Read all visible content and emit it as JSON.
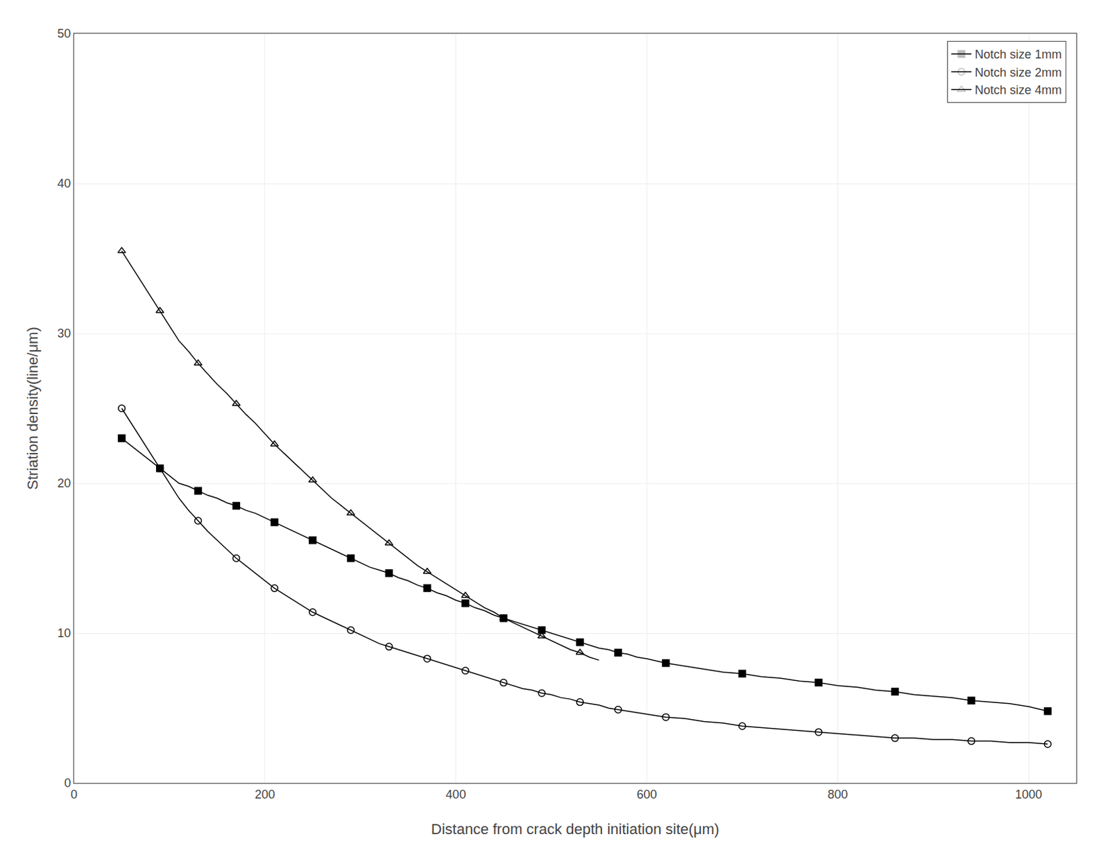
{
  "chart_data": {
    "type": "line",
    "xlabel": "Distance from crack depth initiation site(μm)",
    "ylabel": "Striation density(line/μm)",
    "xlim": [
      0,
      1050
    ],
    "ylim": [
      0,
      50
    ],
    "xticks": [
      0,
      200,
      400,
      600,
      800,
      1000
    ],
    "yticks": [
      0,
      10,
      20,
      30,
      40,
      50
    ],
    "grid": true,
    "legend": "upper right",
    "series": [
      {
        "name": "Notch size 1mm",
        "marker": "square",
        "color": "black",
        "x": [
          50,
          60,
          70,
          80,
          90,
          100,
          110,
          120,
          130,
          140,
          150,
          160,
          170,
          180,
          190,
          200,
          210,
          220,
          230,
          240,
          250,
          260,
          270,
          280,
          290,
          300,
          310,
          320,
          330,
          340,
          350,
          360,
          370,
          380,
          390,
          400,
          410,
          420,
          430,
          440,
          450,
          460,
          470,
          480,
          490,
          500,
          510,
          520,
          530,
          540,
          550,
          560,
          570,
          580,
          590,
          600,
          620,
          640,
          660,
          680,
          700,
          720,
          740,
          760,
          780,
          800,
          820,
          840,
          860,
          880,
          900,
          920,
          940,
          960,
          980,
          1000,
          1020
        ],
        "values": [
          23.0,
          22.5,
          22.0,
          21.5,
          21.0,
          20.5,
          20.0,
          19.8,
          19.5,
          19.2,
          19.0,
          18.7,
          18.5,
          18.2,
          18.0,
          17.7,
          17.4,
          17.1,
          16.8,
          16.5,
          16.2,
          15.9,
          15.6,
          15.3,
          15.0,
          14.7,
          14.4,
          14.2,
          14.0,
          13.7,
          13.5,
          13.2,
          13.0,
          12.7,
          12.5,
          12.2,
          12.0,
          11.7,
          11.5,
          11.2,
          11.0,
          10.8,
          10.6,
          10.4,
          10.2,
          10.0,
          9.8,
          9.6,
          9.4,
          9.2,
          9.0,
          8.9,
          8.7,
          8.6,
          8.4,
          8.3,
          8.0,
          7.8,
          7.6,
          7.4,
          7.3,
          7.1,
          7.0,
          6.8,
          6.7,
          6.5,
          6.4,
          6.2,
          6.1,
          5.9,
          5.8,
          5.7,
          5.5,
          5.4,
          5.3,
          5.1,
          4.8
        ]
      },
      {
        "name": "Notch size 2mm",
        "marker": "circle-open",
        "color": "black",
        "x": [
          50,
          60,
          70,
          80,
          90,
          100,
          110,
          120,
          130,
          140,
          150,
          160,
          170,
          180,
          190,
          200,
          210,
          220,
          230,
          240,
          250,
          260,
          270,
          280,
          290,
          300,
          310,
          320,
          330,
          340,
          350,
          360,
          370,
          380,
          390,
          400,
          410,
          420,
          430,
          440,
          450,
          460,
          470,
          480,
          490,
          500,
          510,
          520,
          530,
          540,
          550,
          560,
          570,
          580,
          590,
          600,
          620,
          640,
          660,
          680,
          700,
          720,
          740,
          760,
          780,
          800,
          820,
          840,
          860,
          880,
          900,
          920,
          940,
          960,
          980,
          1000,
          1020
        ],
        "values": [
          25.0,
          24.0,
          23.0,
          22.0,
          21.0,
          20.0,
          19.0,
          18.2,
          17.5,
          16.8,
          16.2,
          15.6,
          15.0,
          14.5,
          14.0,
          13.5,
          13.0,
          12.6,
          12.2,
          11.8,
          11.4,
          11.1,
          10.8,
          10.5,
          10.2,
          9.9,
          9.6,
          9.3,
          9.1,
          8.9,
          8.7,
          8.5,
          8.3,
          8.1,
          7.9,
          7.7,
          7.5,
          7.3,
          7.1,
          6.9,
          6.7,
          6.5,
          6.3,
          6.2,
          6.0,
          5.9,
          5.7,
          5.6,
          5.4,
          5.3,
          5.2,
          5.0,
          4.9,
          4.8,
          4.7,
          4.6,
          4.4,
          4.3,
          4.1,
          4.0,
          3.8,
          3.7,
          3.6,
          3.5,
          3.4,
          3.3,
          3.2,
          3.1,
          3.0,
          3.0,
          2.9,
          2.9,
          2.8,
          2.8,
          2.7,
          2.7,
          2.6
        ]
      },
      {
        "name": "Notch size 4mm",
        "marker": "triangle-up-open",
        "color": "black",
        "x": [
          50,
          60,
          70,
          80,
          90,
          100,
          110,
          120,
          130,
          140,
          150,
          160,
          170,
          180,
          190,
          200,
          210,
          220,
          230,
          240,
          250,
          260,
          270,
          280,
          290,
          300,
          310,
          320,
          330,
          340,
          350,
          360,
          370,
          380,
          390,
          400,
          410,
          420,
          430,
          440,
          450,
          460,
          470,
          480,
          490,
          500,
          510,
          520,
          530,
          540,
          550
        ],
        "values": [
          35.5,
          34.5,
          33.5,
          32.5,
          31.5,
          30.5,
          29.5,
          28.8,
          28.0,
          27.3,
          26.6,
          26.0,
          25.3,
          24.6,
          24.0,
          23.3,
          22.6,
          22.0,
          21.4,
          20.8,
          20.2,
          19.6,
          19.0,
          18.5,
          18.0,
          17.5,
          17.0,
          16.5,
          16.0,
          15.5,
          15.0,
          14.5,
          14.1,
          13.7,
          13.3,
          12.9,
          12.5,
          12.1,
          11.7,
          11.4,
          11.0,
          10.7,
          10.4,
          10.1,
          9.8,
          9.5,
          9.2,
          8.9,
          8.7,
          8.4,
          8.2
        ]
      }
    ]
  }
}
